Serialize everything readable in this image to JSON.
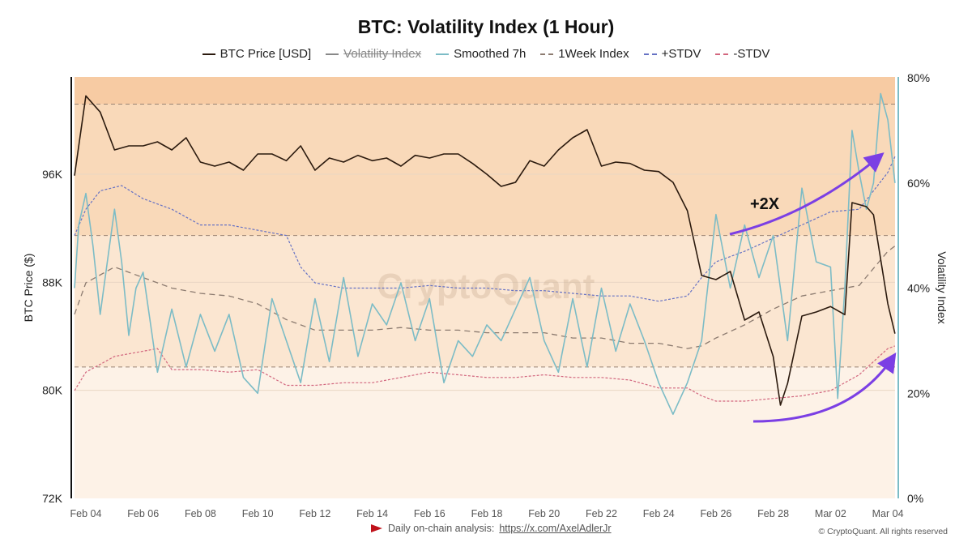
{
  "chart_data": {
    "type": "line",
    "title": "BTC: Volatility Index (1 Hour)",
    "ylabel_left": "BTC Price ($)",
    "ylabel_right": "Volatility Index",
    "y_left_ticks": [
      "72K",
      "80K",
      "88K",
      "96K"
    ],
    "y_left_range": [
      72000,
      103200
    ],
    "y_right_ticks": [
      "0%",
      "20%",
      "40%",
      "60%",
      "80%"
    ],
    "y_right_range": [
      0,
      80
    ],
    "x_ticks": [
      "Feb 04",
      "Feb 06",
      "Feb 08",
      "Feb 10",
      "Feb 12",
      "Feb 14",
      "Feb 16",
      "Feb 18",
      "Feb 20",
      "Feb 22",
      "Feb 24",
      "Feb 26",
      "Feb 28",
      "Mar 02",
      "Mar 04"
    ],
    "legend": [
      {
        "name": "BTC Price [USD]",
        "color": "#2b1a0e",
        "style": "solid",
        "hidden": false
      },
      {
        "name": "Volatility Index",
        "color": "#888888",
        "style": "solid",
        "hidden": true
      },
      {
        "name": "Smoothed 7h",
        "color": "#7cbcc6",
        "style": "solid",
        "hidden": false
      },
      {
        "name": "1Week Index",
        "color": "#8c7b70",
        "style": "dashed",
        "hidden": false
      },
      {
        "name": "+STDV",
        "color": "#6672c4",
        "style": "dashed",
        "hidden": false
      },
      {
        "name": "-STDV",
        "color": "#d2667e",
        "style": "dashed",
        "hidden": false
      }
    ],
    "zones_percent": [
      25,
      50,
      75
    ],
    "series": [
      {
        "name": "BTC Price [USD]",
        "axis": "left",
        "unit": "K USD",
        "points": [
          [
            "Feb 03 12:00",
            95.9
          ],
          [
            "Feb 04 00:00",
            101.8
          ],
          [
            "Feb 04 12:00",
            100.6
          ],
          [
            "Feb 05 00:00",
            97.8
          ],
          [
            "Feb 05 12:00",
            98.1
          ],
          [
            "Feb 06 00:00",
            98.1
          ],
          [
            "Feb 06 12:00",
            98.4
          ],
          [
            "Feb 07 00:00",
            97.8
          ],
          [
            "Feb 07 12:00",
            98.7
          ],
          [
            "Feb 08 00:00",
            96.9
          ],
          [
            "Feb 08 12:00",
            96.6
          ],
          [
            "Feb 09 00:00",
            96.9
          ],
          [
            "Feb 09 12:00",
            96.3
          ],
          [
            "Feb 10 00:00",
            97.5
          ],
          [
            "Feb 10 12:00",
            97.5
          ],
          [
            "Feb 11 00:00",
            97.0
          ],
          [
            "Feb 11 12:00",
            98.1
          ],
          [
            "Feb 12 00:00",
            96.3
          ],
          [
            "Feb 12 12:00",
            97.2
          ],
          [
            "Feb 13 00:00",
            96.9
          ],
          [
            "Feb 13 12:00",
            97.4
          ],
          [
            "Feb 14 00:00",
            97.0
          ],
          [
            "Feb 14 12:00",
            97.2
          ],
          [
            "Feb 15 00:00",
            96.6
          ],
          [
            "Feb 15 12:00",
            97.4
          ],
          [
            "Feb 16 00:00",
            97.2
          ],
          [
            "Feb 16 12:00",
            97.5
          ],
          [
            "Feb 17 00:00",
            97.5
          ],
          [
            "Feb 17 12:00",
            96.8
          ],
          [
            "Feb 18 00:00",
            96.0
          ],
          [
            "Feb 18 12:00",
            95.1
          ],
          [
            "Feb 19 00:00",
            95.4
          ],
          [
            "Feb 19 12:00",
            97.0
          ],
          [
            "Feb 20 00:00",
            96.6
          ],
          [
            "Feb 20 12:00",
            97.8
          ],
          [
            "Feb 21 00:00",
            98.7
          ],
          [
            "Feb 21 12:00",
            99.3
          ],
          [
            "Feb 22 00:00",
            96.6
          ],
          [
            "Feb 22 12:00",
            96.9
          ],
          [
            "Feb 23 00:00",
            96.8
          ],
          [
            "Feb 23 12:00",
            96.3
          ],
          [
            "Feb 24 00:00",
            96.2
          ],
          [
            "Feb 24 12:00",
            95.4
          ],
          [
            "Feb 25 00:00",
            93.3
          ],
          [
            "Feb 25 12:00",
            88.5
          ],
          [
            "Feb 26 00:00",
            88.2
          ],
          [
            "Feb 26 12:00",
            88.8
          ],
          [
            "Feb 27 00:00",
            85.2
          ],
          [
            "Feb 27 12:00",
            85.8
          ],
          [
            "Feb 28 00:00",
            82.5
          ],
          [
            "Feb 28 06:00",
            78.9
          ],
          [
            "Feb 28 12:00",
            80.5
          ],
          [
            "Mar 01 00:00",
            85.5
          ],
          [
            "Mar 01 12:00",
            85.8
          ],
          [
            "Mar 02 00:00",
            86.2
          ],
          [
            "Mar 02 12:00",
            85.6
          ],
          [
            "Mar 02 18:00",
            93.9
          ],
          [
            "Mar 03 06:00",
            93.6
          ],
          [
            "Mar 03 12:00",
            93.0
          ],
          [
            "Mar 04 00:00",
            86.4
          ],
          [
            "Mar 04 06:00",
            84.2
          ]
        ]
      },
      {
        "name": "Smoothed 7h",
        "axis": "right",
        "unit": "%",
        "points": [
          [
            "Feb 03 12:00",
            40
          ],
          [
            "Feb 03 18:00",
            52
          ],
          [
            "Feb 04 00:00",
            58
          ],
          [
            "Feb 04 06:00",
            48
          ],
          [
            "Feb 04 12:00",
            35
          ],
          [
            "Feb 04 18:00",
            45
          ],
          [
            "Feb 05 00:00",
            55
          ],
          [
            "Feb 05 06:00",
            45
          ],
          [
            "Feb 05 12:00",
            31
          ],
          [
            "Feb 05 18:00",
            40
          ],
          [
            "Feb 06 00:00",
            43
          ],
          [
            "Feb 06 12:00",
            24
          ],
          [
            "Feb 07 00:00",
            36
          ],
          [
            "Feb 07 12:00",
            25
          ],
          [
            "Feb 08 00:00",
            35
          ],
          [
            "Feb 08 12:00",
            28
          ],
          [
            "Feb 09 00:00",
            35
          ],
          [
            "Feb 09 12:00",
            23
          ],
          [
            "Feb 10 00:00",
            20
          ],
          [
            "Feb 10 12:00",
            38
          ],
          [
            "Feb 11 00:00",
            30
          ],
          [
            "Feb 11 12:00",
            22
          ],
          [
            "Feb 12 00:00",
            38
          ],
          [
            "Feb 12 12:00",
            26
          ],
          [
            "Feb 13 00:00",
            42
          ],
          [
            "Feb 13 12:00",
            27
          ],
          [
            "Feb 14 00:00",
            37
          ],
          [
            "Feb 14 12:00",
            33
          ],
          [
            "Feb 15 00:00",
            41
          ],
          [
            "Feb 15 12:00",
            30
          ],
          [
            "Feb 16 00:00",
            38
          ],
          [
            "Feb 16 12:00",
            22
          ],
          [
            "Feb 17 00:00",
            30
          ],
          [
            "Feb 17 12:00",
            27
          ],
          [
            "Feb 18 00:00",
            33
          ],
          [
            "Feb 18 12:00",
            30
          ],
          [
            "Feb 19 00:00",
            36
          ],
          [
            "Feb 19 12:00",
            42
          ],
          [
            "Feb 20 00:00",
            30
          ],
          [
            "Feb 20 12:00",
            24
          ],
          [
            "Feb 21 00:00",
            38
          ],
          [
            "Feb 21 12:00",
            25
          ],
          [
            "Feb 22 00:00",
            40
          ],
          [
            "Feb 22 12:00",
            28
          ],
          [
            "Feb 23 00:00",
            37
          ],
          [
            "Feb 23 12:00",
            30
          ],
          [
            "Feb 24 00:00",
            22
          ],
          [
            "Feb 24 12:00",
            16
          ],
          [
            "Feb 25 00:00",
            22
          ],
          [
            "Feb 25 12:00",
            30
          ],
          [
            "Feb 26 00:00",
            54
          ],
          [
            "Feb 26 12:00",
            40
          ],
          [
            "Feb 27 00:00",
            52
          ],
          [
            "Feb 27 12:00",
            42
          ],
          [
            "Feb 28 00:00",
            50
          ],
          [
            "Feb 28 12:00",
            30
          ],
          [
            "Mar 01 00:00",
            59
          ],
          [
            "Mar 01 12:00",
            45
          ],
          [
            "Mar 02 00:00",
            44
          ],
          [
            "Mar 02 06:00",
            19
          ],
          [
            "Mar 02 12:00",
            40
          ],
          [
            "Mar 02 18:00",
            70
          ],
          [
            "Mar 03 00:00",
            62
          ],
          [
            "Mar 03 06:00",
            55
          ],
          [
            "Mar 03 12:00",
            60
          ],
          [
            "Mar 03 18:00",
            77
          ],
          [
            "Mar 04 00:00",
            72
          ],
          [
            "Mar 04 06:00",
            60
          ]
        ]
      },
      {
        "name": "1Week Index",
        "axis": "right",
        "unit": "%",
        "points": [
          [
            "Feb 03 12:00",
            35
          ],
          [
            "Feb 04 00:00",
            41
          ],
          [
            "Feb 05 00:00",
            44
          ],
          [
            "Feb 06 00:00",
            42
          ],
          [
            "Feb 07 00:00",
            40
          ],
          [
            "Feb 08 00:00",
            39
          ],
          [
            "Feb 09 00:00",
            38.5
          ],
          [
            "Feb 10 00:00",
            37
          ],
          [
            "Feb 11 00:00",
            34
          ],
          [
            "Feb 12 00:00",
            32
          ],
          [
            "Feb 13 00:00",
            32
          ],
          [
            "Feb 14 00:00",
            32
          ],
          [
            "Feb 15 00:00",
            32.5
          ],
          [
            "Feb 16 00:00",
            32
          ],
          [
            "Feb 17 00:00",
            32
          ],
          [
            "Feb 18 00:00",
            31.5
          ],
          [
            "Feb 19 00:00",
            31.5
          ],
          [
            "Feb 20 00:00",
            31.5
          ],
          [
            "Feb 21 00:00",
            30.5
          ],
          [
            "Feb 22 00:00",
            30.5
          ],
          [
            "Feb 23 00:00",
            29.5
          ],
          [
            "Feb 24 00:00",
            29.5
          ],
          [
            "Feb 25 00:00",
            28.5
          ],
          [
            "Feb 25 12:00",
            29
          ],
          [
            "Feb 26 00:00",
            30.5
          ],
          [
            "Feb 27 00:00",
            33
          ],
          [
            "Feb 28 00:00",
            36
          ],
          [
            "Mar 01 00:00",
            38.5
          ],
          [
            "Mar 02 00:00",
            39.5
          ],
          [
            "Mar 03 00:00",
            40.5
          ],
          [
            "Mar 04 00:00",
            47
          ],
          [
            "Mar 04 06:00",
            48
          ]
        ]
      },
      {
        "name": "+STDV",
        "axis": "right",
        "unit": "%",
        "points": [
          [
            "Feb 03 12:00",
            50
          ],
          [
            "Feb 04 00:00",
            55
          ],
          [
            "Feb 04 12:00",
            58.5
          ],
          [
            "Feb 05 06:00",
            59.5
          ],
          [
            "Feb 06 00:00",
            57
          ],
          [
            "Feb 07 00:00",
            55
          ],
          [
            "Feb 08 00:00",
            52
          ],
          [
            "Feb 09 00:00",
            52
          ],
          [
            "Feb 10 00:00",
            51
          ],
          [
            "Feb 11 00:00",
            50
          ],
          [
            "Feb 11 12:00",
            44
          ],
          [
            "Feb 12 00:00",
            41
          ],
          [
            "Feb 13 00:00",
            40
          ],
          [
            "Feb 14 00:00",
            40
          ],
          [
            "Feb 15 00:00",
            40
          ],
          [
            "Feb 16 00:00",
            40.5
          ],
          [
            "Feb 17 00:00",
            40
          ],
          [
            "Feb 18 00:00",
            40
          ],
          [
            "Feb 19 00:00",
            39.5
          ],
          [
            "Feb 20 00:00",
            39.5
          ],
          [
            "Feb 21 00:00",
            39
          ],
          [
            "Feb 22 00:00",
            38.5
          ],
          [
            "Feb 23 00:00",
            38.5
          ],
          [
            "Feb 24 00:00",
            37.5
          ],
          [
            "Feb 25 00:00",
            38.5
          ],
          [
            "Feb 25 12:00",
            42
          ],
          [
            "Feb 26 00:00",
            45
          ],
          [
            "Feb 27 00:00",
            47
          ],
          [
            "Feb 28 00:00",
            49.5
          ],
          [
            "Mar 01 00:00",
            52
          ],
          [
            "Mar 02 00:00",
            54.5
          ],
          [
            "Mar 03 00:00",
            55
          ],
          [
            "Mar 04 00:00",
            62
          ],
          [
            "Mar 04 06:00",
            65
          ]
        ]
      },
      {
        "name": "-STDV",
        "axis": "right",
        "unit": "%",
        "points": [
          [
            "Feb 03 12:00",
            20.5
          ],
          [
            "Feb 04 00:00",
            24
          ],
          [
            "Feb 05 00:00",
            27
          ],
          [
            "Feb 06 00:00",
            28
          ],
          [
            "Feb 06 12:00",
            28.5
          ],
          [
            "Feb 07 00:00",
            24.5
          ],
          [
            "Feb 08 00:00",
            24.5
          ],
          [
            "Feb 09 00:00",
            24
          ],
          [
            "Feb 10 00:00",
            24.5
          ],
          [
            "Feb 11 00:00",
            21.5
          ],
          [
            "Feb 12 00:00",
            21.5
          ],
          [
            "Feb 13 00:00",
            22
          ],
          [
            "Feb 14 00:00",
            22
          ],
          [
            "Feb 15 00:00",
            23
          ],
          [
            "Feb 16 00:00",
            24
          ],
          [
            "Feb 17 00:00",
            23.5
          ],
          [
            "Feb 18 00:00",
            23
          ],
          [
            "Feb 19 00:00",
            23
          ],
          [
            "Feb 20 00:00",
            23.5
          ],
          [
            "Feb 21 00:00",
            23
          ],
          [
            "Feb 22 00:00",
            23
          ],
          [
            "Feb 23 00:00",
            22.5
          ],
          [
            "Feb 24 00:00",
            21
          ],
          [
            "Feb 25 00:00",
            21
          ],
          [
            "Feb 25 12:00",
            19.5
          ],
          [
            "Feb 26 00:00",
            18.5
          ],
          [
            "Feb 27 00:00",
            18.5
          ],
          [
            "Feb 28 00:00",
            19
          ],
          [
            "Mar 01 00:00",
            19.5
          ],
          [
            "Mar 02 00:00",
            20.5
          ],
          [
            "Mar 03 00:00",
            23.5
          ],
          [
            "Mar 04 00:00",
            28.5
          ],
          [
            "Mar 04 06:00",
            29
          ]
        ]
      }
    ],
    "annotations": [
      {
        "text": "+2X",
        "color": "#7b3fe4"
      }
    ],
    "watermark": "CryptoQuant"
  },
  "footer": {
    "label": "Daily on-chain analysis:",
    "link": "https://x.com/AxelAdlerJr",
    "copyright": "© CryptoQuant. All rights reserved"
  }
}
